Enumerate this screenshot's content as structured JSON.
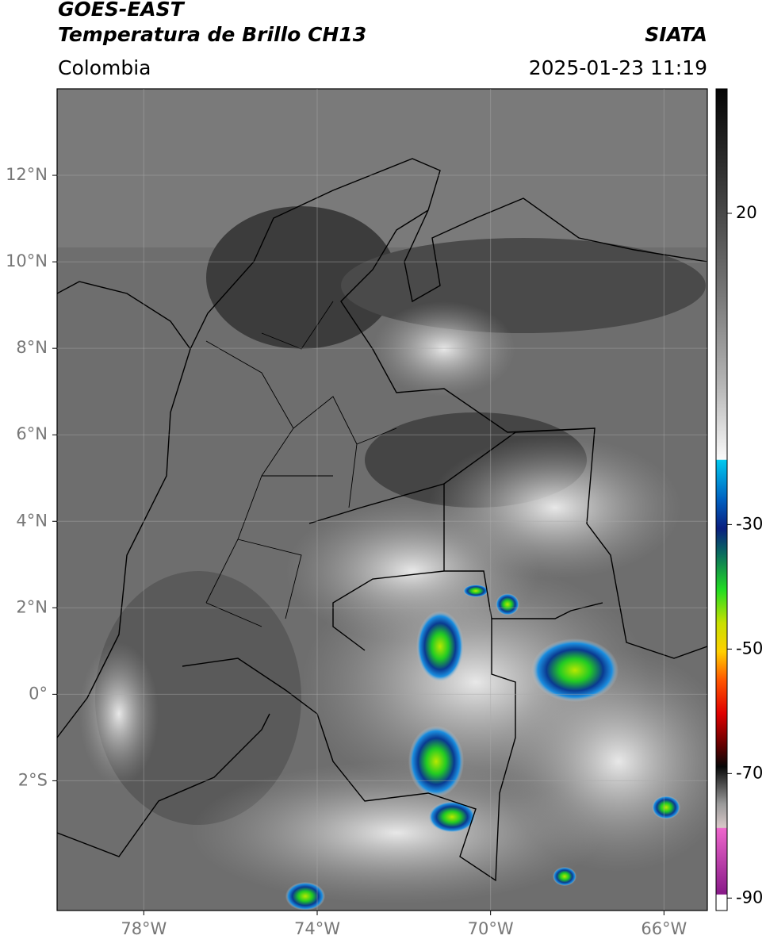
{
  "header": {
    "satellite": "GOES-EAST",
    "product": "Temperatura de Brillo CH13",
    "agency": "SIATA",
    "region": "Colombia",
    "datetime": "2025-01-23 11:19"
  },
  "map": {
    "xlim": [
      -80,
      -65
    ],
    "ylim": [
      -5,
      14
    ],
    "xticks": [
      {
        "value": -78,
        "label": "78°W"
      },
      {
        "value": -74,
        "label": "74°W"
      },
      {
        "value": -70,
        "label": "70°W"
      },
      {
        "value": -66,
        "label": "66°W"
      }
    ],
    "yticks": [
      {
        "value": 12,
        "label": "12°N"
      },
      {
        "value": 10,
        "label": "10°N"
      },
      {
        "value": 8,
        "label": "8°N"
      },
      {
        "value": 6,
        "label": "6°N"
      },
      {
        "value": 4,
        "label": "4°N"
      },
      {
        "value": 2,
        "label": "2°N"
      },
      {
        "value": 0,
        "label": "0°"
      },
      {
        "value": -2,
        "label": "2°S"
      }
    ],
    "grid": true
  },
  "colorbar": {
    "lim": [
      -92,
      40
    ],
    "ticks": [
      20,
      -30,
      -50,
      -70,
      -90
    ]
  }
}
